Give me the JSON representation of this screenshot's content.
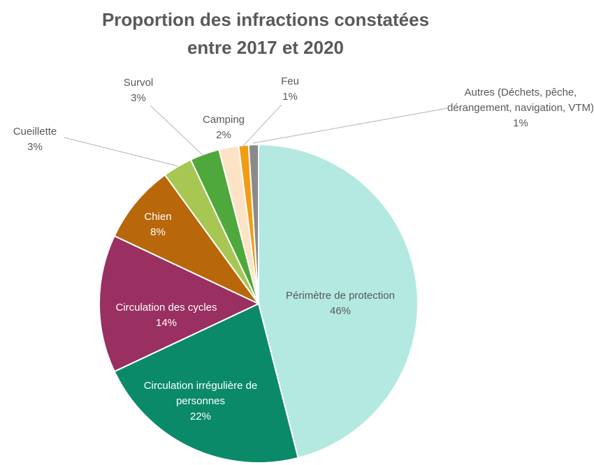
{
  "chart_data": {
    "type": "pie",
    "title": "Proportion des infractions constatées entre 2017 et 2020",
    "categories": [
      "Périmètre de protection",
      "Circulation irrégulière de personnes",
      "Circulation des cycles",
      "Chien",
      "Cueillette",
      "Survol",
      "Camping",
      "Feu",
      "Autres (Déchets, pêche, dérangement, navigation, VTM)"
    ],
    "values": [
      46,
      22,
      14,
      8,
      3,
      3,
      2,
      1,
      1
    ],
    "value_labels": [
      "46%",
      "22%",
      "14%",
      "8%",
      "3%",
      "3%",
      "2%",
      "1%",
      "1%"
    ],
    "colors": [
      "#b3e9e1",
      "#0b8a6a",
      "#9a2f62",
      "#b8670a",
      "#a8c752",
      "#4ea83b",
      "#fde3c6",
      "#f39c12",
      "#8a8a8a"
    ]
  }
}
